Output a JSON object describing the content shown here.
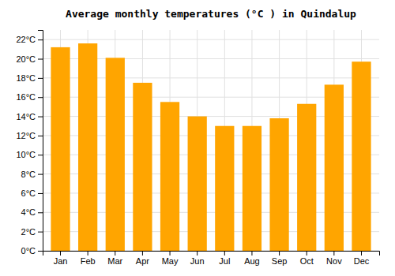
{
  "chart_data": {
    "type": "bar",
    "title": "Average monthly temperatures (°C ) in Quindalup",
    "categories": [
      "Jan",
      "Feb",
      "Mar",
      "Apr",
      "May",
      "Jun",
      "Jul",
      "Aug",
      "Sep",
      "Oct",
      "Nov",
      "Dec"
    ],
    "values": [
      21.2,
      21.6,
      20.1,
      17.5,
      15.5,
      14.0,
      13.0,
      13.0,
      13.8,
      15.3,
      17.3,
      19.7
    ],
    "color": "#FFA500",
    "ylim": [
      0,
      23
    ],
    "yticks": [
      {
        "value": 0,
        "label": "0°C"
      },
      {
        "value": 2,
        "label": "2°C"
      },
      {
        "value": 4,
        "label": "4°C"
      },
      {
        "value": 6,
        "label": "6°C"
      },
      {
        "value": 8,
        "label": "8°C"
      },
      {
        "value": 10,
        "label": "10°C"
      },
      {
        "value": 12,
        "label": "12°C"
      },
      {
        "value": 14,
        "label": "14°C"
      },
      {
        "value": 16,
        "label": "16°C"
      },
      {
        "value": 18,
        "label": "18°C"
      },
      {
        "value": 20,
        "label": "20°C"
      },
      {
        "value": 22,
        "label": "22°C"
      }
    ],
    "grid": true
  }
}
